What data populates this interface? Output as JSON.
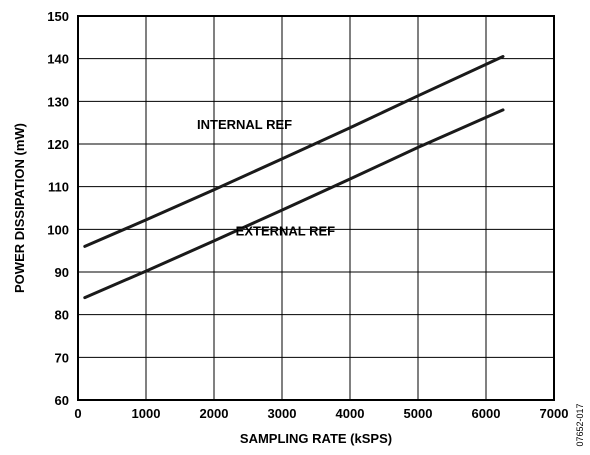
{
  "chart_data": {
    "type": "line",
    "title": "",
    "xlabel": "SAMPLING RATE (kSPS)",
    "ylabel": "POWER DISSIPATION (mW)",
    "xlim": [
      0,
      7000
    ],
    "ylim": [
      60,
      150
    ],
    "x_ticks": [
      0,
      1000,
      2000,
      3000,
      4000,
      5000,
      6000,
      7000
    ],
    "y_ticks": [
      60,
      70,
      80,
      90,
      100,
      110,
      120,
      130,
      140,
      150
    ],
    "grid": true,
    "legend": "none",
    "series": [
      {
        "name": "INTERNAL REF",
        "x": [
          100,
          1000,
          2000,
          3000,
          4000,
          5000,
          6250
        ],
        "y": [
          96,
          102.2,
          109.3,
          116.5,
          123.8,
          131.3,
          140.5
        ]
      },
      {
        "name": "EXTERNAL REF",
        "x": [
          100,
          1000,
          2000,
          3000,
          4000,
          5000,
          6250
        ],
        "y": [
          84,
          90.2,
          97.3,
          104.5,
          111.8,
          119.2,
          128
        ]
      }
    ],
    "series_label_positions": [
      {
        "x": 2450,
        "y": 123.5
      },
      {
        "x": 3050,
        "y": 98.5
      }
    ],
    "figure_id": "07652-017"
  }
}
